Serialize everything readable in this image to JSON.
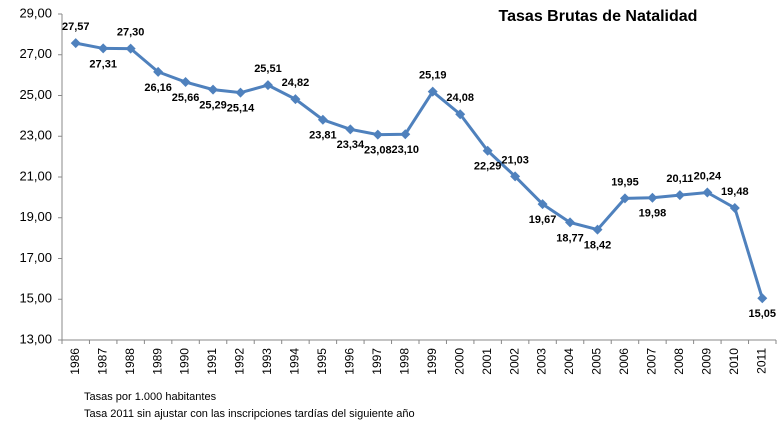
{
  "chart_data": {
    "type": "line",
    "title": "Tasas Brutas de Natalidad",
    "categories": [
      "1986",
      "1987",
      "1988",
      "1989",
      "1990",
      "1991",
      "1992",
      "1993",
      "1994",
      "1995",
      "1996",
      "1997",
      "1998",
      "1999",
      "2000",
      "2001",
      "2002",
      "2003",
      "2004",
      "2005",
      "2006",
      "2007",
      "2008",
      "2009",
      "2010",
      "2011"
    ],
    "values": [
      27.57,
      27.31,
      27.3,
      26.16,
      25.66,
      25.29,
      25.14,
      25.51,
      24.82,
      23.81,
      23.34,
      23.08,
      23.1,
      25.19,
      24.08,
      22.29,
      21.03,
      19.67,
      18.77,
      18.42,
      19.95,
      19.98,
      20.11,
      20.24,
      19.48,
      15.05
    ],
    "value_labels": [
      "27,57",
      "27,31",
      "27,30",
      "26,16",
      "25,66",
      "25,29",
      "25,14",
      "25,51",
      "24,82",
      "23,81",
      "23,34",
      "23,08",
      "23,10",
      "25,19",
      "24,08",
      "22,29",
      "21,03",
      "19,67",
      "18,77",
      "18,42",
      "19,95",
      "19,98",
      "20,11",
      "20,24",
      "19,48",
      "15,05"
    ],
    "color": "#4f81bd",
    "ylim": [
      13,
      29
    ],
    "yticks": [
      {
        "value": 13,
        "label": "13,00"
      },
      {
        "value": 15,
        "label": "15,00"
      },
      {
        "value": 17,
        "label": "17,00"
      },
      {
        "value": 19,
        "label": "19,00"
      },
      {
        "value": 21,
        "label": "21,00"
      },
      {
        "value": 23,
        "label": "23,00"
      },
      {
        "value": 25,
        "label": "25,00"
      },
      {
        "value": 27,
        "label": "27,00"
      },
      {
        "value": 29,
        "label": "29,00"
      }
    ],
    "grid": false,
    "notes": [
      "Tasas por 1.000 habitantes",
      "Tasa 2011 sin ajustar con las inscripciones tardías del siguiente año"
    ]
  }
}
